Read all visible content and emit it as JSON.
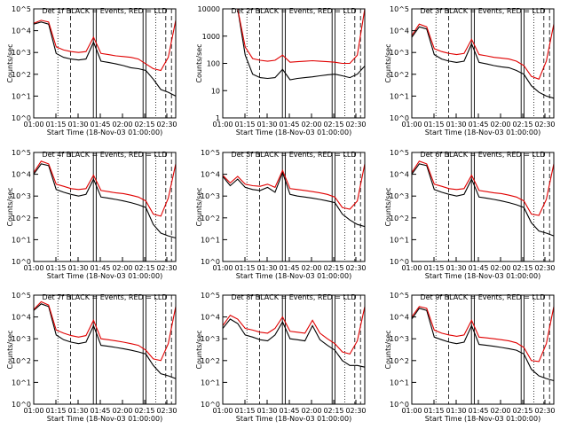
{
  "figure": {
    "xlabel": "Start Time (18-Nov-03 01:00:00)",
    "ylabel": "Counts/sec",
    "x_ticks": [
      "01:00",
      "01:15",
      "01:30",
      "01:45",
      "02:00",
      "02:15",
      "02:30"
    ],
    "colors": {
      "events": "#000000",
      "lld": "#e00000",
      "background": "#ffffff"
    }
  },
  "chart_data": [
    {
      "type": "line",
      "title": "Det 1f BLACK = Events, RED = LLD",
      "xlabel": "Start Time (18-Nov-03 01:00:00)",
      "ylabel": "Counts/sec",
      "y_scale": "log",
      "ylim": [
        1,
        100000
      ],
      "y_ticks": [
        "10^0",
        "10^1",
        "10^2",
        "10^3",
        "10^4",
        "10^5"
      ],
      "x": [
        "01:00",
        "01:05",
        "01:10",
        "01:15",
        "01:20",
        "01:25",
        "01:30",
        "01:35",
        "01:40",
        "01:45",
        "01:50",
        "01:55",
        "02:00",
        "02:05",
        "02:10",
        "02:15",
        "02:20",
        "02:25",
        "02:30",
        "02:35"
      ],
      "series": [
        {
          "name": "Events",
          "values": [
            20000,
            25000,
            20000,
            900,
            600,
            500,
            450,
            500,
            3000,
            400,
            350,
            300,
            250,
            200,
            180,
            150,
            60,
            20,
            15,
            10
          ]
        },
        {
          "name": "LLD",
          "values": [
            22000,
            30000,
            25000,
            1800,
            1300,
            1100,
            1000,
            1100,
            5000,
            900,
            800,
            700,
            650,
            600,
            500,
            300,
            180,
            150,
            600,
            30000
          ]
        }
      ]
    },
    {
      "type": "line",
      "title": "Det 2f BLACK = Events, RED = LLD",
      "xlabel": "Start Time (18-Nov-03 01:00:00)",
      "ylabel": "Counts/sec",
      "y_scale": "log",
      "ylim": [
        1,
        10000
      ],
      "y_ticks": [
        "1",
        "10",
        "100",
        "1000",
        "10000"
      ],
      "x": [
        "01:00",
        "01:05",
        "01:10",
        "01:15",
        "01:20",
        "01:25",
        "01:30",
        "01:35",
        "01:40",
        "01:45",
        "01:50",
        "01:55",
        "02:00",
        "02:05",
        "02:10",
        "02:15",
        "02:20",
        "02:25",
        "02:30",
        "02:35"
      ],
      "series": [
        {
          "name": "Events",
          "values": [
            10000,
            10000,
            10000,
            200,
            40,
            30,
            28,
            30,
            60,
            25,
            28,
            30,
            32,
            35,
            38,
            40,
            35,
            30,
            40,
            80
          ]
        },
        {
          "name": "LLD",
          "values": [
            10000,
            10000,
            10000,
            400,
            150,
            130,
            120,
            130,
            200,
            110,
            115,
            120,
            125,
            120,
            115,
            110,
            100,
            100,
            200,
            10000
          ]
        }
      ]
    },
    {
      "type": "line",
      "title": "Det 3f BLACK = Events, RED = LLD",
      "xlabel": "Start Time (18-Nov-03 01:00:00)",
      "ylabel": "Counts/sec",
      "y_scale": "log",
      "ylim": [
        1,
        100000
      ],
      "y_ticks": [
        "10^0",
        "10^1",
        "10^2",
        "10^3",
        "10^4",
        "10^5"
      ],
      "x": [
        "01:00",
        "01:05",
        "01:10",
        "01:15",
        "01:20",
        "01:25",
        "01:30",
        "01:35",
        "01:40",
        "01:45",
        "01:50",
        "01:55",
        "02:00",
        "02:05",
        "02:10",
        "02:15",
        "02:20",
        "02:25",
        "02:30",
        "02:35"
      ],
      "series": [
        {
          "name": "Events",
          "values": [
            5000,
            15000,
            12000,
            800,
            500,
            400,
            350,
            400,
            2500,
            350,
            300,
            250,
            220,
            200,
            150,
            100,
            30,
            15,
            10,
            8
          ]
        },
        {
          "name": "LLD",
          "values": [
            6000,
            20000,
            15000,
            1500,
            1100,
            900,
            800,
            900,
            4000,
            800,
            700,
            600,
            550,
            500,
            400,
            250,
            80,
            60,
            400,
            20000
          ]
        }
      ]
    },
    {
      "type": "line",
      "title": "Det 4f BLACK = Events, RED = LLD",
      "xlabel": "Start Time (18-Nov-03 01:00:00)",
      "ylabel": "Counts/sec",
      "y_scale": "log",
      "ylim": [
        1,
        100000
      ],
      "y_ticks": [
        "10^0",
        "10^1",
        "10^2",
        "10^3",
        "10^4",
        "10^5"
      ],
      "x": [
        "01:00",
        "01:05",
        "01:10",
        "01:15",
        "01:20",
        "01:25",
        "01:30",
        "01:35",
        "01:40",
        "01:45",
        "01:50",
        "01:55",
        "02:00",
        "02:05",
        "02:10",
        "02:15",
        "02:20",
        "02:25",
        "02:30",
        "02:35"
      ],
      "series": [
        {
          "name": "Events",
          "values": [
            10000,
            30000,
            25000,
            2000,
            1500,
            1200,
            1000,
            1200,
            6000,
            900,
            800,
            700,
            600,
            500,
            400,
            300,
            50,
            20,
            15,
            12
          ]
        },
        {
          "name": "LLD",
          "values": [
            12000,
            40000,
            30000,
            3500,
            2800,
            2200,
            2000,
            2200,
            9000,
            1800,
            1600,
            1400,
            1300,
            1100,
            900,
            600,
            150,
            120,
            800,
            30000
          ]
        }
      ]
    },
    {
      "type": "line",
      "title": "Det 5f BLACK = Events, RED = LLD",
      "xlabel": "Start Time (18-Nov-03 01:00:00)",
      "ylabel": "Counts/sec",
      "y_scale": "log",
      "ylim": [
        1,
        100000
      ],
      "y_ticks": [
        "10^0",
        "10^1",
        "10^2",
        "10^3",
        "10^4",
        "10^5"
      ],
      "x": [
        "01:00",
        "01:05",
        "01:10",
        "01:15",
        "01:20",
        "01:25",
        "01:30",
        "01:35",
        "01:40",
        "01:45",
        "01:50",
        "01:55",
        "02:00",
        "02:05",
        "02:10",
        "02:15",
        "02:20",
        "02:25",
        "02:30",
        "02:35"
      ],
      "series": [
        {
          "name": "Events",
          "values": [
            8000,
            3000,
            6000,
            2500,
            2000,
            1800,
            2500,
            1500,
            12000,
            1200,
            1000,
            900,
            800,
            700,
            600,
            500,
            150,
            80,
            50,
            40
          ]
        },
        {
          "name": "LLD",
          "values": [
            9000,
            4000,
            8000,
            3500,
            3000,
            2800,
            3500,
            2500,
            15000,
            2200,
            2000,
            1800,
            1600,
            1400,
            1200,
            900,
            300,
            250,
            600,
            30000
          ]
        }
      ]
    },
    {
      "type": "line",
      "title": "Det 6f BLACK = Events, RED = LLD",
      "xlabel": "Start Time (18-Nov-03 01:00:00)",
      "ylabel": "Counts/sec",
      "y_scale": "log",
      "ylim": [
        1,
        100000
      ],
      "y_ticks": [
        "10^0",
        "10^1",
        "10^2",
        "10^3",
        "10^4",
        "10^5"
      ],
      "x": [
        "01:00",
        "01:05",
        "01:10",
        "01:15",
        "01:20",
        "01:25",
        "01:30",
        "01:35",
        "01:40",
        "01:45",
        "01:50",
        "01:55",
        "02:00",
        "02:05",
        "02:10",
        "02:15",
        "02:20",
        "02:25",
        "02:30",
        "02:35"
      ],
      "series": [
        {
          "name": "Events",
          "values": [
            10000,
            30000,
            25000,
            2000,
            1500,
            1200,
            1000,
            1200,
            6000,
            900,
            800,
            700,
            600,
            500,
            400,
            300,
            60,
            25,
            20,
            15
          ]
        },
        {
          "name": "LLD",
          "values": [
            12000,
            40000,
            30000,
            3500,
            2800,
            2200,
            2000,
            2200,
            9000,
            1800,
            1600,
            1400,
            1300,
            1100,
            900,
            600,
            150,
            130,
            700,
            30000
          ]
        }
      ]
    },
    {
      "type": "line",
      "title": "Det 7f BLACK = Events, RED = LLD",
      "xlabel": "Start Time (18-Nov-03 01:00:00)",
      "ylabel": "Counts/sec",
      "y_scale": "log",
      "ylim": [
        1,
        100000
      ],
      "y_ticks": [
        "10^0",
        "10^1",
        "10^2",
        "10^3",
        "10^4",
        "10^5"
      ],
      "x": [
        "01:00",
        "01:05",
        "01:10",
        "01:15",
        "01:20",
        "01:25",
        "01:30",
        "01:35",
        "01:40",
        "01:45",
        "01:50",
        "01:55",
        "02:00",
        "02:05",
        "02:10",
        "02:15",
        "02:20",
        "02:25",
        "02:30",
        "02:35"
      ],
      "series": [
        {
          "name": "Events",
          "values": [
            20000,
            40000,
            30000,
            1500,
            900,
            700,
            600,
            700,
            4000,
            500,
            450,
            400,
            350,
            300,
            250,
            200,
            60,
            25,
            20,
            15
          ]
        },
        {
          "name": "LLD",
          "values": [
            22000,
            50000,
            35000,
            2500,
            1800,
            1400,
            1200,
            1400,
            7000,
            1000,
            900,
            800,
            700,
            600,
            500,
            300,
            120,
            100,
            600,
            30000
          ]
        }
      ]
    },
    {
      "type": "line",
      "title": "Det 8f BLACK = Events, RED = LLD",
      "xlabel": "Start Time (18-Nov-03 01:00:00)",
      "ylabel": "Counts/sec",
      "y_scale": "log",
      "ylim": [
        1,
        100000
      ],
      "y_ticks": [
        "10^0",
        "10^1",
        "10^2",
        "10^3",
        "10^4",
        "10^5"
      ],
      "x": [
        "01:00",
        "01:05",
        "01:10",
        "01:15",
        "01:20",
        "01:25",
        "01:30",
        "01:35",
        "01:40",
        "01:45",
        "01:50",
        "01:55",
        "02:00",
        "02:05",
        "02:10",
        "02:15",
        "02:20",
        "02:25",
        "02:30",
        "02:35"
      ],
      "series": [
        {
          "name": "Events",
          "values": [
            3000,
            8000,
            5000,
            1500,
            1200,
            900,
            800,
            1500,
            6000,
            1000,
            900,
            800,
            4000,
            900,
            500,
            300,
            100,
            60,
            60,
            50
          ]
        },
        {
          "name": "LLD",
          "values": [
            4000,
            12000,
            8000,
            3000,
            2500,
            2000,
            1800,
            3000,
            10000,
            2200,
            2000,
            1800,
            7000,
            1800,
            1000,
            600,
            250,
            200,
            800,
            30000
          ]
        }
      ]
    },
    {
      "type": "line",
      "title": "Det 9f BLACK = Events, RED = LLD",
      "xlabel": "Start Time (18-Nov-03 01:00:00)",
      "ylabel": "Counts/sec",
      "y_scale": "log",
      "ylim": [
        1,
        100000
      ],
      "y_ticks": [
        "10^0",
        "10^1",
        "10^2",
        "10^3",
        "10^4",
        "10^5"
      ],
      "x": [
        "01:00",
        "01:05",
        "01:10",
        "01:15",
        "01:20",
        "01:25",
        "01:30",
        "01:35",
        "01:40",
        "01:45",
        "01:50",
        "01:55",
        "02:00",
        "02:05",
        "02:10",
        "02:15",
        "02:20",
        "02:25",
        "02:30",
        "02:35"
      ],
      "series": [
        {
          "name": "Events",
          "values": [
            8000,
            25000,
            20000,
            1200,
            900,
            700,
            600,
            700,
            4000,
            550,
            500,
            450,
            400,
            350,
            300,
            200,
            40,
            20,
            15,
            12
          ]
        },
        {
          "name": "LLD",
          "values": [
            10000,
            30000,
            25000,
            2500,
            1800,
            1500,
            1300,
            1500,
            7000,
            1200,
            1100,
            1000,
            900,
            800,
            650,
            400,
            100,
            90,
            600,
            30000
          ]
        }
      ]
    }
  ]
}
